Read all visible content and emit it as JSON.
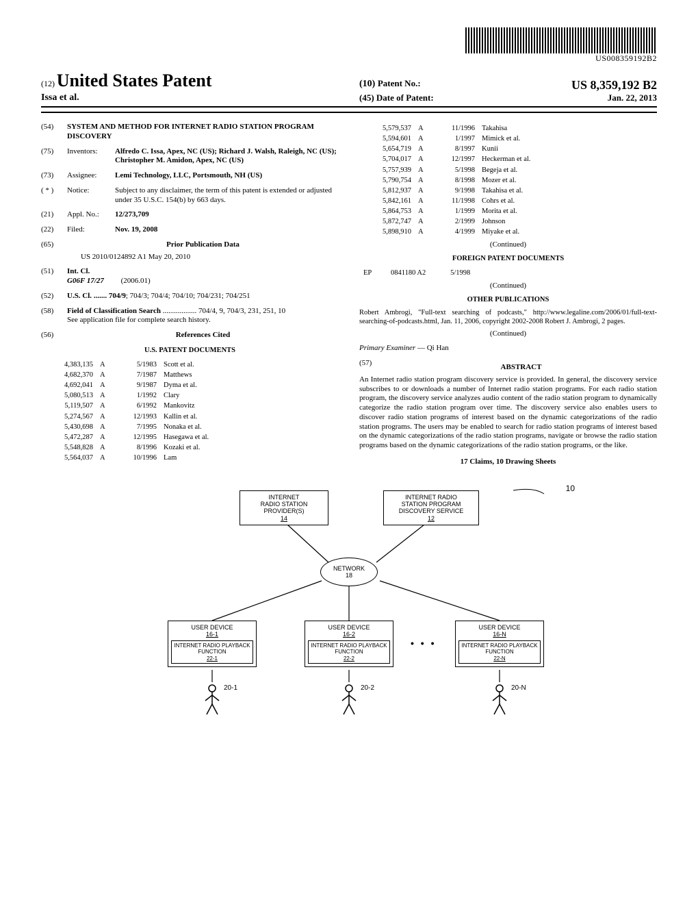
{
  "barcode_number": "US008359192B2",
  "header": {
    "usp_prefix": "(12)",
    "usp_title": "United States Patent",
    "authors": "Issa et al.",
    "patent_no_prefix": "(10)",
    "patent_no_label": "Patent No.:",
    "patent_no_value": "US 8,359,192 B2",
    "date_prefix": "(45)",
    "date_label": "Date of Patent:",
    "date_value": "Jan. 22, 2013"
  },
  "left": {
    "title_num": "(54)",
    "title": "SYSTEM AND METHOD FOR INTERNET RADIO STATION PROGRAM DISCOVERY",
    "inventors_num": "(75)",
    "inventors_label": "Inventors:",
    "inventors": "Alfredo C. Issa, Apex, NC (US); Richard J. Walsh, Raleigh, NC (US); Christopher M. Amidon, Apex, NC (US)",
    "assignee_num": "(73)",
    "assignee_label": "Assignee:",
    "assignee": "Lemi Technology, LLC, Portsmouth, NH (US)",
    "notice_num": "( * )",
    "notice_label": "Notice:",
    "notice": "Subject to any disclaimer, the term of this patent is extended or adjusted under 35 U.S.C. 154(b) by 663 days.",
    "appl_num": "(21)",
    "appl_label": "Appl. No.:",
    "appl_value": "12/273,709",
    "filed_num": "(22)",
    "filed_label": "Filed:",
    "filed_value": "Nov. 19, 2008",
    "prior_num": "(65)",
    "prior_title": "Prior Publication Data",
    "prior_value": "US 2010/0124892 A1    May 20, 2010",
    "intcl_num": "(51)",
    "intcl_label": "Int. Cl.",
    "intcl_code": "G06F 17/27",
    "intcl_year": "(2006.01)",
    "uscl_num": "(52)",
    "uscl_label": "U.S. Cl.",
    "uscl_value": "....... 704/9; 704/3; 704/4; 704/10; 704/231; 704/251",
    "search_num": "(58)",
    "search_label": "Field of Classification Search",
    "search_value": ".................. 704/4, 9, 704/3, 231, 251, 10",
    "search_note": "See application file for complete search history.",
    "refs_num": "(56)",
    "refs_title": "References Cited",
    "us_docs_title": "U.S. PATENT DOCUMENTS",
    "us_refs": [
      [
        "4,383,135",
        "A",
        "5/1983",
        "Scott et al."
      ],
      [
        "4,682,370",
        "A",
        "7/1987",
        "Matthews"
      ],
      [
        "4,692,041",
        "A",
        "9/1987",
        "Dyma et al."
      ],
      [
        "5,080,513",
        "A",
        "1/1992",
        "Clary"
      ],
      [
        "5,119,507",
        "A",
        "6/1992",
        "Mankovitz"
      ],
      [
        "5,274,567",
        "A",
        "12/1993",
        "Kallin et al."
      ],
      [
        "5,430,698",
        "A",
        "7/1995",
        "Nonaka et al."
      ],
      [
        "5,472,287",
        "A",
        "12/1995",
        "Hasegawa et al."
      ],
      [
        "5,548,828",
        "A",
        "8/1996",
        "Kozaki et al."
      ],
      [
        "5,564,037",
        "A",
        "10/1996",
        "Lam"
      ]
    ]
  },
  "right": {
    "us_refs": [
      [
        "5,579,537",
        "A",
        "11/1996",
        "Takahisa"
      ],
      [
        "5,594,601",
        "A",
        "1/1997",
        "Mimick et al."
      ],
      [
        "5,654,719",
        "A",
        "8/1997",
        "Kunii"
      ],
      [
        "5,704,017",
        "A",
        "12/1997",
        "Heckerman et al."
      ],
      [
        "5,757,939",
        "A",
        "5/1998",
        "Begeja et al."
      ],
      [
        "5,790,754",
        "A",
        "8/1998",
        "Mozer et al."
      ],
      [
        "5,812,937",
        "A",
        "9/1998",
        "Takahisa et al."
      ],
      [
        "5,842,161",
        "A",
        "11/1998",
        "Cohrs et al."
      ],
      [
        "5,864,753",
        "A",
        "1/1999",
        "Morita et al."
      ],
      [
        "5,872,747",
        "A",
        "2/1999",
        "Johnson"
      ],
      [
        "5,898,910",
        "A",
        "4/1999",
        "Miyake et al."
      ]
    ],
    "continued": "(Continued)",
    "foreign_title": "FOREIGN PATENT DOCUMENTS",
    "foreign_ref": [
      "EP",
      "0841180 A2",
      "5/1998"
    ],
    "other_title": "OTHER PUBLICATIONS",
    "other_text": "Robert Ambrogi, \"Full-text searching of podcasts,\" http://www.legaline.com/2006/01/full-text-searching-of-podcasts.html, Jan. 11, 2006, copyright 2002-2008 Robert J. Ambrogi, 2 pages.",
    "examiner_label": "Primary Examiner",
    "examiner_value": "— Qi Han",
    "abstract_num": "(57)",
    "abstract_title": "ABSTRACT",
    "abstract_text": "An Internet radio station program discovery service is provided. In general, the discovery service subscribes to or downloads a number of Internet radio station programs. For each radio station program, the discovery service analyzes audio content of the radio station program to dynamically categorize the radio station program over time. The discovery service also enables users to discover radio station programs of interest based on the dynamic categorizations of the radio station programs. The users may be enabled to search for radio station programs of interest based on the dynamic categorizations of the radio station programs, navigate or browse the radio station programs based on the dynamic categorizations of the radio station programs, or the like.",
    "claims": "17 Claims, 10 Drawing Sheets"
  },
  "diagram": {
    "ten": "10",
    "provider": {
      "l1": "INTERNET",
      "l2": "RADIO STATION",
      "l3": "PROVIDER(S)",
      "id": "14"
    },
    "discovery": {
      "l1": "INTERNET RADIO",
      "l2": "STATION PROGRAM",
      "l3": "DISCOVERY SERVICE",
      "id": "12"
    },
    "network": {
      "label": "NETWORK",
      "id": "18"
    },
    "users": [
      {
        "box": "USER DEVICE",
        "bid": "16-1",
        "fn": "INTERNET RADIO PLAYBACK FUNCTION",
        "fid": "22-1",
        "u": "20-1"
      },
      {
        "box": "USER DEVICE",
        "bid": "16-2",
        "fn": "INTERNET RADIO PLAYBACK FUNCTION",
        "fid": "22-2",
        "u": "20-2"
      },
      {
        "box": "USER DEVICE",
        "bid": "16-N",
        "fn": "INTERNET RADIO PLAYBACK FUNCTION",
        "fid": "22-N",
        "u": "20-N"
      }
    ],
    "dots": "• • •"
  }
}
